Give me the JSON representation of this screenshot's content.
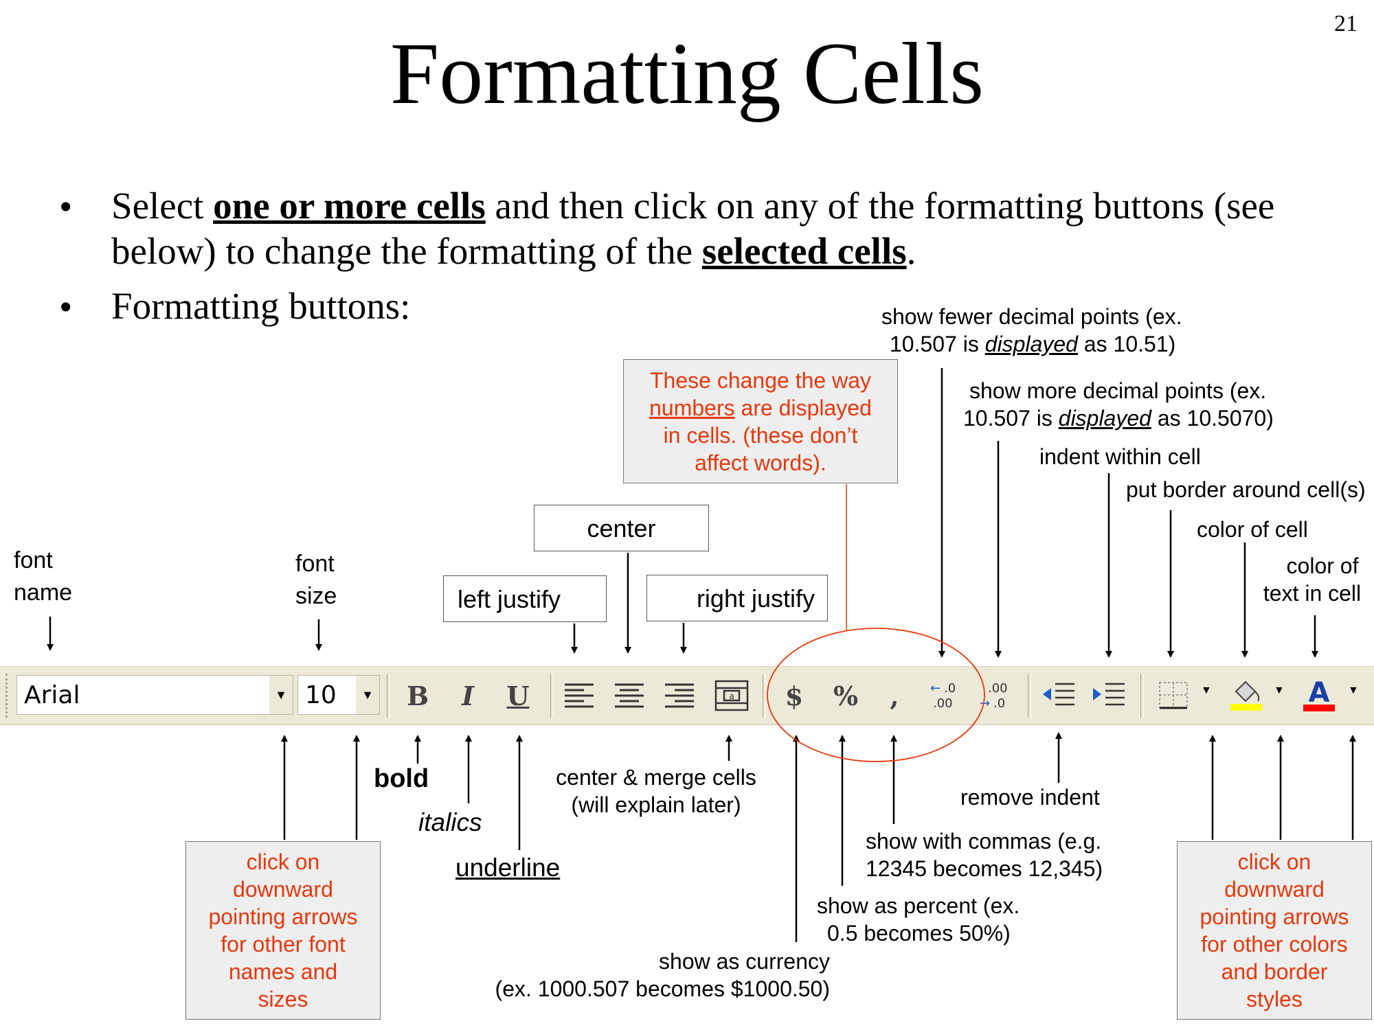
{
  "slide": {
    "page_number": "21",
    "title": "Formatting Cells",
    "bullet1": {
      "t1": "Select ",
      "t2": "one or more cells",
      "t3": " and then click on any of the formatting buttons (see",
      "t4": "below) to change the formatting of the ",
      "t5": "selected cells",
      "t6": "."
    },
    "bullet2": "Formatting buttons:",
    "bullet_char": "•"
  },
  "toolbar": {
    "font_name_value": "Arial",
    "font_size_value": "10",
    "buttons": [
      "bold-button",
      "italic-button",
      "underline-button",
      "align-left-button",
      "center-button",
      "align-right-button",
      "merge-center-button",
      "currency-button",
      "percent-button",
      "comma-button",
      "increase-decimal-button",
      "decrease-decimal-button",
      "decrease-indent-button",
      "increase-indent-button",
      "borders-button",
      "fill-color-button",
      "font-color-button"
    ],
    "bold_glyph": "B",
    "italic_glyph": "I",
    "underline_glyph": "U",
    "currency_glyph": "$",
    "percent_glyph": "%",
    "comma_glyph": ",",
    "font_color_glyph": "A",
    "fill_accent": "#ffff00",
    "font_color_accent": "#ff0000"
  },
  "annotations": {
    "font_name": [
      "font",
      "name"
    ],
    "font_size": [
      "font",
      "size"
    ],
    "left_justify": "left justify",
    "center": "center",
    "right_justify": "right justify",
    "numbers_box": {
      "l1": "These change the way",
      "l2a": "numbers",
      "l2b": " are displayed",
      "l3": "in cells. (these don’t",
      "l4": "affect words)."
    },
    "fewer_decimals": {
      "l1": "show fewer decimal points (ex.",
      "l2a": "10.507 is ",
      "l2b": "displayed",
      "l2c": " as 10.51)"
    },
    "more_decimals": {
      "l1": "show more decimal points (ex.",
      "l2a": "10.507 is ",
      "l2b": "displayed",
      "l2c": " as 10.5070)"
    },
    "indent": "indent within cell",
    "border": "put border around cell(s)",
    "cell_color": "color of cell",
    "text_color": [
      "color of",
      "text in cell"
    ],
    "bold": "bold",
    "italics": "italics",
    "underline": "underline",
    "merge": [
      "center & merge cells",
      "(will explain later)"
    ],
    "remove_indent": "remove indent",
    "commas": [
      "show with commas (e.g.",
      "12345 becomes 12,345)"
    ],
    "percent": [
      "show as percent (ex.",
      "0.5 becomes 50%)"
    ],
    "currency": [
      "show as currency",
      "(ex. 1000.507 becomes $1000.50)"
    ],
    "left_red_box": [
      "click on",
      "downward",
      "pointing arrows",
      "for other font",
      "names and",
      "sizes"
    ],
    "right_red_box": [
      "click on",
      "downward",
      "pointing arrows",
      "for other colors",
      "and border",
      "styles"
    ]
  },
  "colors": {
    "annotation_red": "#e8380d",
    "toolbar_bg": "#ece9d8"
  }
}
